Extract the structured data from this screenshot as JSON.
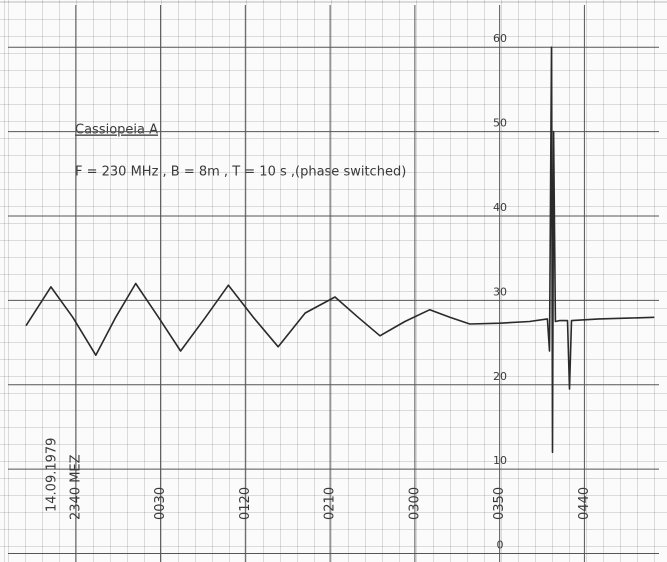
{
  "chart_data": {
    "type": "line",
    "title": "Cassiopeia A",
    "subtitle": "F = 230 MHz , B = 8m , T = 10 s ,(phase switched)",
    "annotations": [
      "14.09.1979"
    ],
    "x": [
      -29.4,
      -14.7,
      -1.8,
      11.8,
      23.5,
      35.3,
      48.8,
      61.8,
      76.5,
      90,
      104.7,
      119.4,
      135.3,
      152.9,
      166.5,
      179.4,
      194.1,
      208.8,
      220.6,
      232.4,
      250,
      267.6,
      278.2,
      279.4,
      280.6,
      281.2,
      281.8,
      282.9,
      285.3,
      290,
      291.2,
      292.4,
      308.8,
      326.5,
      341.2
    ],
    "values": [
      27,
      31.6,
      28,
      23.5,
      28,
      32,
      28,
      24,
      28,
      31.8,
      28,
      24.5,
      28.5,
      30.4,
      28,
      25.8,
      27.5,
      28.9,
      28,
      27.2,
      27.3,
      27.5,
      27.8,
      24,
      60,
      12,
      50,
      27.5,
      27.6,
      27.6,
      19.5,
      27.6,
      27.8,
      27.9,
      28
    ],
    "color": "#2a2a2a",
    "xlim": [
      -40,
      344
    ],
    "xticks": [
      {
        "value": 0,
        "label": "2340 MEZ"
      },
      {
        "value": 50,
        "label": "0030"
      },
      {
        "value": 100,
        "label": "0120"
      },
      {
        "value": 150,
        "label": "0210"
      },
      {
        "value": 200,
        "label": "0300"
      },
      {
        "value": 250,
        "label": "0350"
      },
      {
        "value": 300,
        "label": "0440"
      }
    ],
    "ylim": [
      -1,
      65
    ],
    "yticks": [
      0,
      10,
      20,
      30,
      40,
      50,
      60
    ],
    "grid": true
  }
}
